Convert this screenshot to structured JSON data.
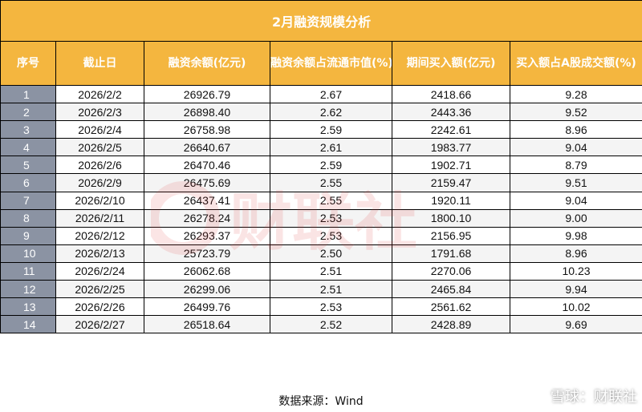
{
  "title": "2月融资规模分析",
  "columns": [
    "序号",
    "截止日",
    "融资余额(亿元)",
    "融资余额占流通市值(%)",
    "期间买入额(亿元)",
    "买入额占A股成交额(%)"
  ],
  "rows": [
    [
      "1",
      "2026/2/2",
      "26926.79",
      "2.67",
      "2418.66",
      "9.28"
    ],
    [
      "2",
      "2026/2/3",
      "26898.40",
      "2.62",
      "2443.36",
      "9.52"
    ],
    [
      "3",
      "2026/2/4",
      "26758.98",
      "2.59",
      "2242.61",
      "8.96"
    ],
    [
      "4",
      "2026/2/5",
      "26640.67",
      "2.61",
      "1983.77",
      "9.04"
    ],
    [
      "5",
      "2026/2/6",
      "26470.46",
      "2.59",
      "1902.71",
      "8.79"
    ],
    [
      "6",
      "2026/2/9",
      "26475.69",
      "2.55",
      "2159.47",
      "9.51"
    ],
    [
      "7",
      "2026/2/10",
      "26437.41",
      "2.55",
      "1920.11",
      "9.04"
    ],
    [
      "8",
      "2026/2/11",
      "26278.24",
      "2.53",
      "1800.10",
      "9.00"
    ],
    [
      "9",
      "2026/2/12",
      "26293.37",
      "2.53",
      "2156.95",
      "9.98"
    ],
    [
      "10",
      "2026/2/13",
      "25723.79",
      "2.50",
      "1791.68",
      "8.96"
    ],
    [
      "11",
      "2026/2/24",
      "26062.68",
      "2.51",
      "2270.06",
      "10.23"
    ],
    [
      "12",
      "2026/2/25",
      "26299.06",
      "2.51",
      "2465.84",
      "9.94"
    ],
    [
      "13",
      "2026/2/26",
      "26499.76",
      "2.53",
      "2561.62",
      "10.02"
    ],
    [
      "14",
      "2026/2/27",
      "26518.64",
      "2.52",
      "2428.89",
      "9.69"
    ]
  ],
  "source": "数据来源：Wind",
  "watermark_text": "财联社",
  "corner_logo": {
    "icon": "snowball-icon",
    "text": "雪球：财联社"
  },
  "colors": {
    "header_bg": "#f4b63f",
    "header_text": "#ffffff",
    "index_cell_bg": "#8b93a3",
    "alt_row_bg": "#f4f4f4",
    "watermark": "#e03535"
  }
}
